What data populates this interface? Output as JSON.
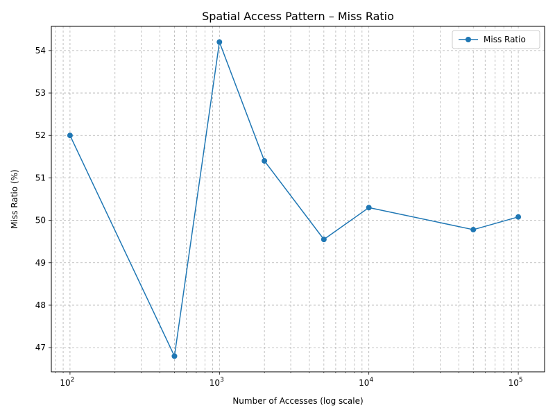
{
  "chart_data": {
    "type": "line",
    "title": "Spatial Access Pattern – Miss Ratio",
    "xlabel": "Number of Accesses (log scale)",
    "ylabel": "Miss Ratio (%)",
    "x_scale": "log",
    "xlim": [
      75,
      150000
    ],
    "ylim": [
      46.43,
      54.57
    ],
    "x_ticks": [
      {
        "value": 100,
        "base": "10",
        "exp": "2"
      },
      {
        "value": 1000,
        "base": "10",
        "exp": "3"
      },
      {
        "value": 10000,
        "base": "10",
        "exp": "4"
      },
      {
        "value": 100000,
        "base": "10",
        "exp": "5"
      }
    ],
    "y_ticks": [
      47,
      48,
      49,
      50,
      51,
      52,
      53,
      54
    ],
    "grid": true,
    "grid_minor": true,
    "legend_position": "top-right",
    "colors": {
      "series": "#1f77b4",
      "grid": "#b0b0b0",
      "axis": "#000000"
    },
    "series": [
      {
        "name": "Miss Ratio",
        "marker": "circle",
        "x": [
          100,
          500,
          1000,
          2000,
          5000,
          10000,
          50000,
          100000
        ],
        "y": [
          52.0,
          46.8,
          54.2,
          51.4,
          49.55,
          50.3,
          49.78,
          50.08
        ]
      }
    ]
  }
}
